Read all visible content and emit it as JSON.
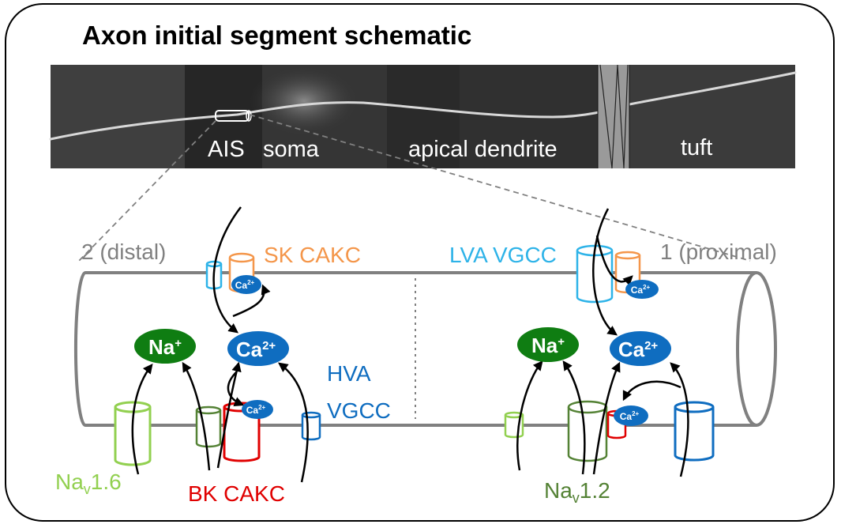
{
  "title": "Axon initial segment schematic",
  "micrograph": {
    "labels": {
      "ais": "AIS",
      "soma": "soma",
      "apical_dendrite": "apical dendrite",
      "tuft": "tuft"
    }
  },
  "schematic": {
    "distal_label": "2 (distal)",
    "proximal_label": "1 (proximal)",
    "channels": {
      "sk_cakc": "SK CAKC",
      "lva_vgcc": "LVA VGCC",
      "hva": "HVA",
      "vgcc": "VGCC",
      "bk_cakc": "BK CAKC",
      "nav16_base": "Na",
      "nav16_sub": "v",
      "nav16_suffix": "1.6",
      "nav12_base": "Na",
      "nav12_sub": "v",
      "nav12_suffix": "1.2"
    },
    "ions": {
      "na_base": "Na",
      "na_sup": "+",
      "ca_base": "Ca",
      "ca_sup": "2+"
    }
  },
  "colors": {
    "nav16": "#92d050",
    "nav12": "#548235",
    "sk": "#f4964a",
    "bk": "#e00000",
    "lva": "#2eb3e8",
    "hva": "#0f6dc0",
    "na_ion": "#0f7d12",
    "ca_ion": "#0f6dc0",
    "axon": "#808080"
  }
}
